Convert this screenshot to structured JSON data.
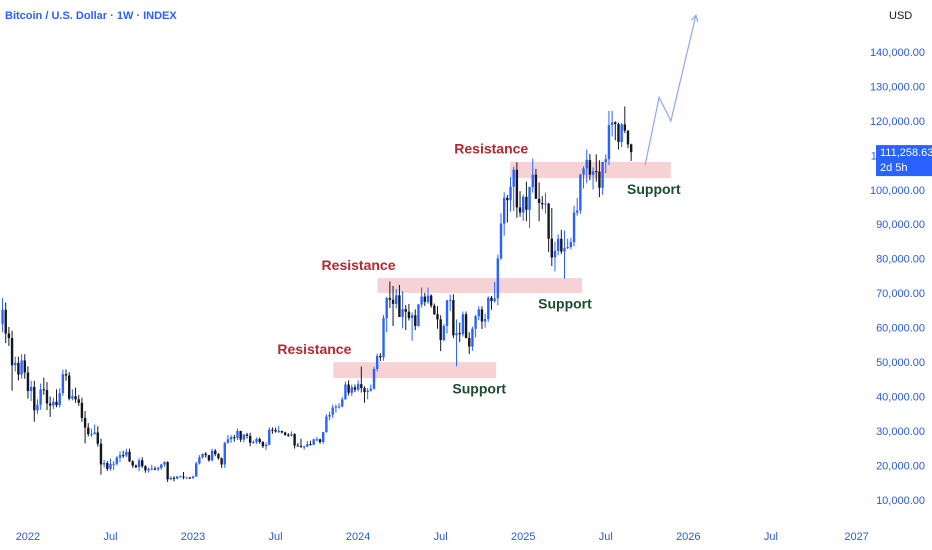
{
  "chart_data": {
    "type": "candlestick",
    "title": "Bitcoin / U.S. Dollar · 1W · INDEX",
    "currency": "USD",
    "countdown": "2d 5h",
    "last_price": {
      "value": 111258.63,
      "label": "111,258.63"
    },
    "xlim": [
      -0.8,
      274.8
    ],
    "xticks": [
      {
        "value": 8,
        "label": "2022"
      },
      {
        "value": 34,
        "label": "Jul"
      },
      {
        "value": 60,
        "label": "2023"
      },
      {
        "value": 86,
        "label": "Jul"
      },
      {
        "value": 112,
        "label": "2024"
      },
      {
        "value": 138,
        "label": "Jul"
      },
      {
        "value": 164,
        "label": "2025"
      },
      {
        "value": 190,
        "label": "Jul"
      },
      {
        "value": 216,
        "label": "2026"
      },
      {
        "value": 242,
        "label": "Jul"
      },
      {
        "value": 269,
        "label": "2027"
      }
    ],
    "ylim": [
      3900,
      155400
    ],
    "yticks": [
      {
        "value": 10000,
        "label": "10,000.00"
      },
      {
        "value": 20000,
        "label": "20,000.00"
      },
      {
        "value": 30000,
        "label": "30,000.00"
      },
      {
        "value": 40000,
        "label": "40,000.00"
      },
      {
        "value": 50000,
        "label": "50,000.00"
      },
      {
        "value": 60000,
        "label": "60,000.00"
      },
      {
        "value": 70000,
        "label": "70,000.00"
      },
      {
        "value": 80000,
        "label": "80,000.00"
      },
      {
        "value": 90000,
        "label": "90,000.00"
      },
      {
        "value": 100000,
        "label": "100,000.00"
      },
      {
        "value": 110000,
        "label": "110,000.00"
      },
      {
        "value": 120000,
        "label": "120,000.00"
      },
      {
        "value": 130000,
        "label": "130,000.00"
      },
      {
        "value": 140000,
        "label": "140,000.00"
      }
    ],
    "up_color": "#2962ff",
    "down_color": "#131722",
    "open": [
      61300,
      65500,
      58600,
      57300,
      49400,
      50100,
      46700,
      50800,
      47300,
      41900,
      43100,
      36300,
      37900,
      42400,
      42200,
      38300,
      37700,
      38800,
      37800,
      41300,
      46800,
      46400,
      39700,
      40400,
      39500,
      38500,
      34100,
      31300,
      29400,
      29400,
      29900,
      26600,
      20600,
      21000,
      19300,
      20800,
      20800,
      22600,
      23300,
      23200,
      24300,
      21500,
      20300,
      19800,
      21800,
      20100,
      18900,
      19300,
      19400,
      19200,
      19600,
      20600,
      21300,
      16300,
      16700,
      16500,
      17100,
      17100,
      16800,
      16800,
      16600,
      17100,
      20900,
      22700,
      23700,
      23300,
      21800,
      24600,
      23600,
      22400,
      20600,
      26900,
      27900,
      28500,
      28300,
      30300,
      27800,
      29300,
      28900,
      26900,
      27100,
      28000,
      27100,
      25900,
      26300,
      30700,
      30600,
      30200,
      30300,
      29900,
      29200,
      29000,
      29400,
      26100,
      26000,
      25800,
      25800,
      26500,
      26300,
      27900,
      27900,
      27100,
      30000,
      34500,
      35000,
      37100,
      37400,
      37400,
      39500,
      43800,
      41400,
      43000,
      42300,
      43900,
      42800,
      41600,
      42000,
      42600,
      48300,
      52100,
      51700,
      63100,
      68900,
      68400,
      67200,
      69700,
      63400,
      65700,
      64900,
      63100,
      63900,
      60800,
      67000,
      69300,
      67800,
      69600,
      66700,
      64200,
      62700,
      56700,
      60800,
      68200,
      68300,
      58100,
      58700,
      58400,
      64200,
      57300,
      54800,
      60000,
      63600,
      65600,
      62100,
      62800,
      69000,
      68000,
      68800,
      80400,
      90500,
      98000,
      97300,
      101200,
      106100,
      95200,
      93700,
      98300,
      94500,
      101100,
      104700,
      97700,
      96500,
      96100,
      96300,
      86100,
      80700,
      82600,
      86100,
      82400,
      83400,
      83700,
      85100,
      93700,
      94300,
      104700,
      106500,
      109000,
      104700,
      105700,
      105600,
      100900,
      108400,
      109200,
      119100,
      119900,
      119400,
      114200,
      119300,
      117500,
      113500
    ],
    "high": [
      68900,
      67600,
      60500,
      59400,
      51900,
      51900,
      52600,
      52600,
      49100,
      44900,
      44900,
      39500,
      44100,
      45800,
      44500,
      40300,
      40000,
      42400,
      42700,
      48100,
      48200,
      47400,
      42400,
      42900,
      40800,
      40000,
      36100,
      32600,
      31000,
      32200,
      31700,
      28100,
      21900,
      21600,
      22300,
      21600,
      23000,
      24400,
      24600,
      25200,
      25200,
      21800,
      20600,
      22400,
      22700,
      20400,
      19700,
      20500,
      20000,
      20000,
      20800,
      21500,
      21500,
      17200,
      17200,
      17300,
      17400,
      18400,
      17000,
      17000,
      17400,
      21400,
      23300,
      23800,
      24200,
      23400,
      25200,
      25100,
      23900,
      22600,
      27200,
      29200,
      29100,
      29200,
      31000,
      30400,
      29400,
      29800,
      29800,
      27600,
      28400,
      28400,
      27400,
      27000,
      31400,
      31400,
      31300,
      31800,
      30400,
      30100,
      29700,
      30200,
      29700,
      26800,
      28100,
      26100,
      27400,
      27500,
      28100,
      28600,
      28100,
      30100,
      35200,
      35900,
      37900,
      38000,
      38400,
      40200,
      44700,
      45000,
      43800,
      43800,
      45000,
      49000,
      43300,
      42800,
      43800,
      48900,
      52800,
      52900,
      64000,
      69200,
      73700,
      72400,
      71500,
      72700,
      70900,
      66900,
      67200,
      64700,
      65600,
      67200,
      71900,
      70400,
      71900,
      70000,
      67300,
      66500,
      63900,
      61400,
      68400,
      69900,
      70000,
      62700,
      61800,
      65000,
      65000,
      59000,
      60600,
      64000,
      66500,
      66500,
      64400,
      69400,
      69500,
      73600,
      81500,
      93500,
      99600,
      98800,
      104000,
      107000,
      108300,
      99900,
      99000,
      102700,
      101200,
      109400,
      106400,
      102500,
      98500,
      99500,
      96500,
      95000,
      85300,
      87400,
      88700,
      88500,
      86100,
      86400,
      95700,
      97900,
      104900,
      107100,
      112000,
      110700,
      106800,
      110600,
      108900,
      108500,
      110600,
      123200,
      123200,
      120200,
      119800,
      119700,
      124500,
      117600,
      113700
    ],
    "low": [
      59000,
      55800,
      55000,
      42000,
      47600,
      45000,
      45500,
      45500,
      39700,
      39000,
      33000,
      35300,
      36500,
      40800,
      36400,
      34400,
      36700,
      37200,
      37100,
      40500,
      44900,
      39200,
      39200,
      38500,
      37600,
      33000,
      26700,
      28700,
      28600,
      29300,
      25800,
      17600,
      19700,
      18700,
      18800,
      19000,
      20300,
      21300,
      22500,
      22700,
      21300,
      19600,
      19500,
      18600,
      19600,
      18200,
      18200,
      18900,
      18900,
      18700,
      19000,
      20000,
      15500,
      16000,
      15700,
      16300,
      16800,
      16300,
      16600,
      16400,
      16500,
      17000,
      20600,
      22300,
      22600,
      21400,
      21500,
      23000,
      22000,
      19600,
      19600,
      26600,
      26900,
      27200,
      27700,
      27100,
      27000,
      28100,
      25900,
      26600,
      26600,
      26600,
      25400,
      24800,
      26200,
      29500,
      29800,
      29700,
      29600,
      28900,
      28600,
      28700,
      25200,
      25800,
      25400,
      24900,
      25600,
      26100,
      26200,
      27300,
      26600,
      26600,
      29800,
      33400,
      34100,
      35600,
      36800,
      37200,
      39400,
      40600,
      40500,
      41600,
      41800,
      41500,
      38500,
      39500,
      41800,
      42300,
      47600,
      50600,
      50700,
      59000,
      66000,
      60800,
      65900,
      64600,
      60100,
      59600,
      62400,
      56500,
      59600,
      60600,
      66100,
      66600,
      67200,
      66100,
      64000,
      60000,
      53500,
      56300,
      58600,
      65100,
      57300,
      49100,
      56100,
      57700,
      57200,
      52600,
      53600,
      57500,
      62500,
      59900,
      60300,
      62000,
      65500,
      67500,
      66800,
      80000,
      87000,
      90800,
      94000,
      94200,
      92200,
      92500,
      91300,
      91200,
      89200,
      99500,
      97700,
      91200,
      94700,
      93400,
      82300,
      78200,
      76600,
      81300,
      81700,
      74500,
      83100,
      83000,
      83900,
      92800,
      93300,
      100700,
      102200,
      103100,
      100400,
      102700,
      98200,
      98900,
      105200,
      107500,
      115800,
      114700,
      112000,
      112700,
      116800,
      112400,
      108700
    ],
    "close": [
      65500,
      58600,
      57300,
      49400,
      50100,
      46700,
      50800,
      47300,
      41900,
      43100,
      36300,
      37900,
      42400,
      42200,
      38300,
      37700,
      38800,
      37800,
      41300,
      46800,
      46400,
      39700,
      40400,
      39500,
      38500,
      34100,
      31300,
      29400,
      29400,
      29900,
      26600,
      20600,
      21000,
      19300,
      20800,
      20800,
      22600,
      23300,
      23200,
      24300,
      21500,
      20300,
      19800,
      21800,
      20100,
      18900,
      19300,
      19400,
      19200,
      19600,
      20600,
      21300,
      16300,
      16700,
      16500,
      17100,
      17100,
      16800,
      16800,
      16600,
      17100,
      20900,
      22700,
      23700,
      23300,
      21800,
      24600,
      23600,
      22400,
      20600,
      26900,
      27900,
      28500,
      28300,
      30300,
      27800,
      29300,
      28900,
      26900,
      27100,
      28000,
      27100,
      25900,
      26300,
      30700,
      30600,
      30200,
      30300,
      29900,
      29200,
      29000,
      29400,
      26100,
      26000,
      25800,
      25800,
      26500,
      26300,
      27900,
      27900,
      27100,
      30000,
      34500,
      35000,
      37100,
      37400,
      37400,
      39500,
      43800,
      41400,
      43000,
      42300,
      43900,
      42800,
      41600,
      42000,
      42600,
      48300,
      52100,
      51700,
      63100,
      68900,
      68400,
      67200,
      69700,
      63400,
      65700,
      64900,
      63100,
      63900,
      60800,
      67000,
      69300,
      67800,
      69600,
      66700,
      64200,
      62700,
      56700,
      60800,
      68200,
      68300,
      58100,
      58700,
      58400,
      64200,
      57300,
      54800,
      60000,
      63600,
      65600,
      62100,
      62800,
      69000,
      68000,
      68800,
      80400,
      90500,
      98000,
      97300,
      101200,
      106100,
      95200,
      93700,
      98300,
      94500,
      101100,
      104700,
      97700,
      96500,
      96100,
      96300,
      86100,
      80700,
      82600,
      86100,
      82400,
      83400,
      83700,
      85100,
      93700,
      94300,
      104700,
      106500,
      109000,
      104700,
      105700,
      105600,
      100900,
      108400,
      109200,
      119100,
      119900,
      119400,
      114200,
      119300,
      117500,
      113500,
      111258.63
    ],
    "zone_color": "#f6d2d5",
    "resistance_color": "#b22833",
    "support_color": "#1b4d2e",
    "zones": [
      {
        "xmin": 104.2,
        "xmax": 155.5,
        "ymin": 45700,
        "ymax": 50300,
        "top_label": "Resistance",
        "bottom_label": "Support"
      },
      {
        "xmin": 118.1,
        "xmax": 182.5,
        "ymin": 70400,
        "ymax": 74700,
        "top_label": "Resistance",
        "bottom_label": "Support"
      },
      {
        "xmin": 159.9,
        "xmax": 210.5,
        "ymin": 103700,
        "ymax": 108400,
        "top_label": "Resistance",
        "bottom_label": "Support"
      }
    ],
    "projection": {
      "color": "#8fa8f2",
      "x": [
        202.4,
        206.8,
        210.5,
        218.4
      ],
      "y": [
        107500,
        127200,
        120300,
        151000
      ]
    }
  }
}
